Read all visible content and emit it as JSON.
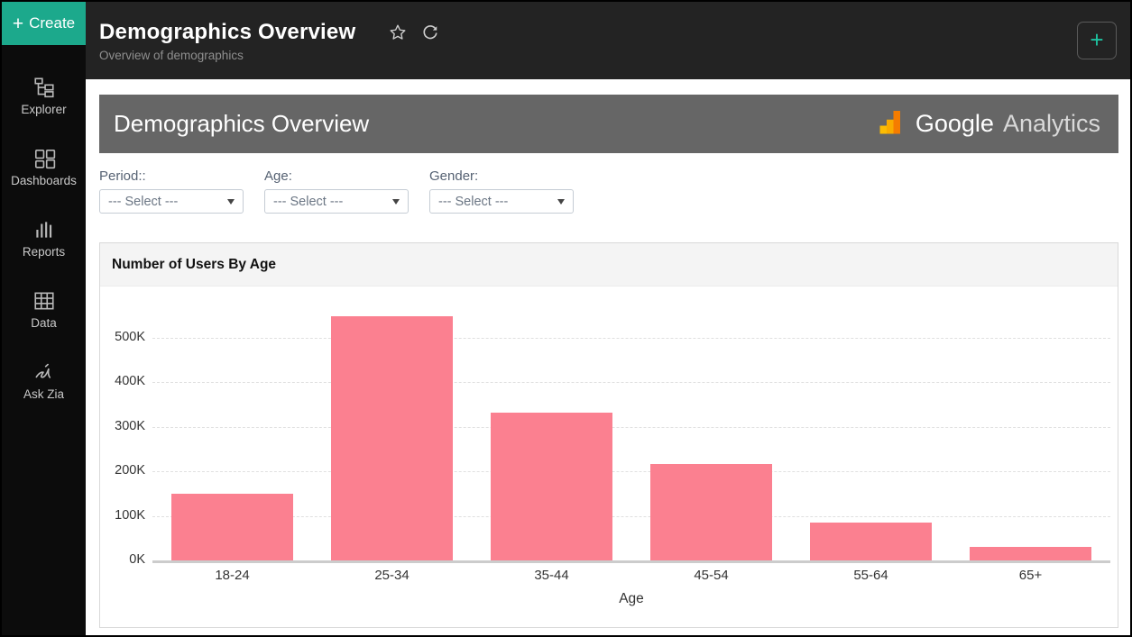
{
  "sidebar": {
    "create_label": "Create",
    "create_plus": "+",
    "items": [
      {
        "label": "Explorer"
      },
      {
        "label": "Dashboards"
      },
      {
        "label": "Reports"
      },
      {
        "label": "Data"
      },
      {
        "label": "Ask Zia"
      }
    ]
  },
  "header": {
    "title": "Demographics Overview",
    "subtitle": "Overview of demographics",
    "add_button": "+"
  },
  "banner": {
    "title": "Demographics Overview",
    "brand_word1": "Google",
    "brand_word2": "Analytics"
  },
  "filters": [
    {
      "label": "Period::",
      "value": "--- Select ---"
    },
    {
      "label": "Age:",
      "value": "--- Select ---"
    },
    {
      "label": "Gender:",
      "value": "--- Select ---"
    }
  ],
  "chart_data": {
    "type": "bar",
    "title": "Number of Users By Age",
    "categories": [
      "18-24",
      "25-34",
      "35-44",
      "45-54",
      "55-64",
      "65+"
    ],
    "values": [
      150000,
      548000,
      333000,
      217000,
      85000,
      30000
    ],
    "xlabel": "Age",
    "ylabel": "",
    "ylim": [
      0,
      560000
    ],
    "ytick_step": 100000,
    "ytick_labels": [
      "0K",
      "100K",
      "200K",
      "300K",
      "400K",
      "500K"
    ],
    "bar_color": "#fb8090",
    "grid": "horizontal-dashed",
    "legend": "none"
  },
  "colors": {
    "accent_teal": "#1ca98c",
    "banner_gray": "#666666",
    "bar_pink": "#fb8090",
    "sidebar_bg": "#0c0c0c",
    "topbar_bg": "#232323",
    "ga_yellow": "#fbbc04",
    "ga_amber": "#f9ab00",
    "ga_orange": "#f57c00"
  }
}
